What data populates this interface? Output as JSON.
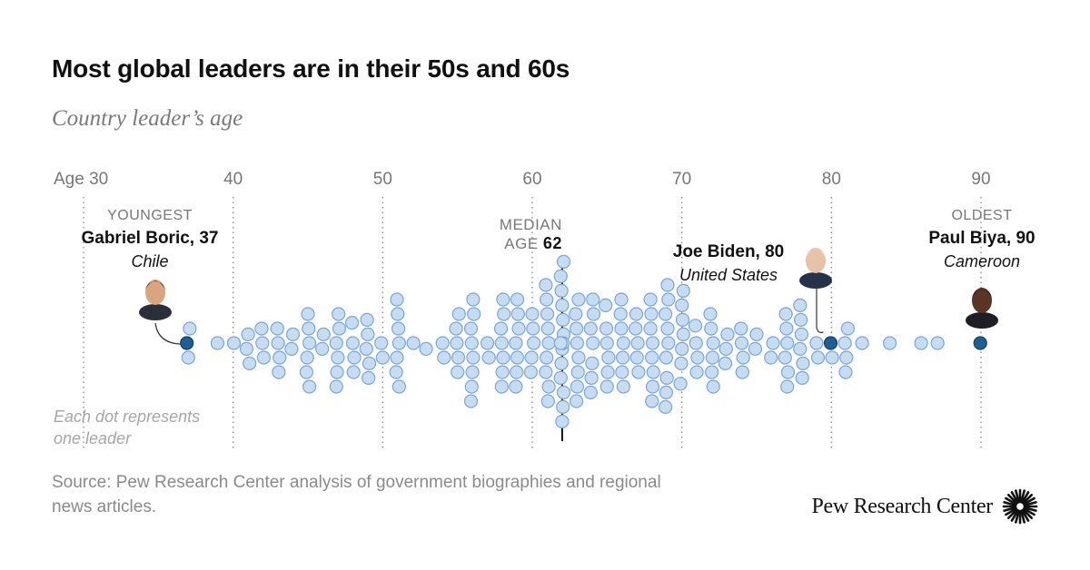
{
  "title": "Most global leaders are in their 50s and 60s",
  "subtitle": "Country leader’s age",
  "chart_data": {
    "type": "scatter",
    "subtype": "beeswarm",
    "x_axis": {
      "first_tick_prefix": "Age",
      "ticks": [
        30,
        40,
        50,
        60,
        70,
        80,
        90
      ],
      "xlim": [
        30,
        90
      ],
      "grid": "dotted vertical"
    },
    "note": "Each dot represents one leader",
    "ages": [
      37,
      37,
      37,
      39,
      40,
      41,
      41,
      41,
      42,
      42,
      42,
      43,
      43,
      43,
      43,
      44,
      44,
      45,
      45,
      45,
      45,
      45,
      45,
      46,
      46,
      47,
      47,
      47,
      47,
      47,
      47,
      48,
      48,
      48,
      48,
      49,
      49,
      49,
      49,
      49,
      50,
      50,
      51,
      51,
      51,
      51,
      51,
      51,
      51,
      52,
      53,
      54,
      54,
      55,
      55,
      55,
      55,
      55,
      56,
      56,
      56,
      56,
      56,
      56,
      56,
      56,
      57,
      57,
      58,
      58,
      58,
      58,
      58,
      58,
      58,
      59,
      59,
      59,
      59,
      59,
      59,
      59,
      60,
      60,
      60,
      60,
      60,
      61,
      61,
      61,
      61,
      61,
      61,
      61,
      61,
      61,
      62,
      62,
      62,
      62,
      62,
      62,
      62,
      62,
      62,
      62,
      62,
      62,
      62,
      62,
      62,
      63,
      63,
      63,
      63,
      63,
      63,
      63,
      63,
      64,
      64,
      64,
      64,
      64,
      64,
      64,
      65,
      65,
      65,
      65,
      65,
      65,
      66,
      66,
      66,
      66,
      66,
      66,
      66,
      67,
      67,
      67,
      67,
      67,
      68,
      68,
      68,
      68,
      68,
      68,
      68,
      68,
      69,
      69,
      69,
      69,
      69,
      69,
      69,
      69,
      69,
      70,
      70,
      70,
      70,
      70,
      70,
      70,
      71,
      71,
      71,
      71,
      72,
      72,
      72,
      72,
      72,
      72,
      73,
      73,
      73,
      74,
      74,
      74,
      74,
      75,
      75,
      76,
      76,
      77,
      77,
      77,
      77,
      77,
      77,
      78,
      78,
      78,
      78,
      78,
      78,
      79,
      79,
      80,
      80,
      81,
      81,
      81,
      81,
      82,
      84,
      86,
      87,
      90
    ],
    "median": {
      "label_line1": "MEDIAN",
      "label_line2": "AGE",
      "value": "62",
      "age": 62
    },
    "highlights": [
      {
        "tag": "YOUNGEST",
        "name": "Gabriel Boric, 37",
        "country": "Chile",
        "age": 37
      },
      {
        "tag": "",
        "name": "Joe Biden, 80",
        "country": "United States",
        "age": 80
      },
      {
        "tag": "OLDEST",
        "name": "Paul Biya, 90",
        "country": "Cameroon",
        "age": 90
      }
    ],
    "colors": {
      "dot_fill": "#c6dcf2",
      "dot_stroke": "#7aa6d6",
      "highlight_fill": "#1f5f94",
      "highlight_stroke": "#123e66",
      "median_line": "#111111",
      "grid": "#888888"
    }
  },
  "source": "Source: Pew Research Center analysis of government biographies and regional news articles.",
  "brand": {
    "name": "Pew Research Center",
    "logo_icon": "starburst-logo-icon"
  }
}
